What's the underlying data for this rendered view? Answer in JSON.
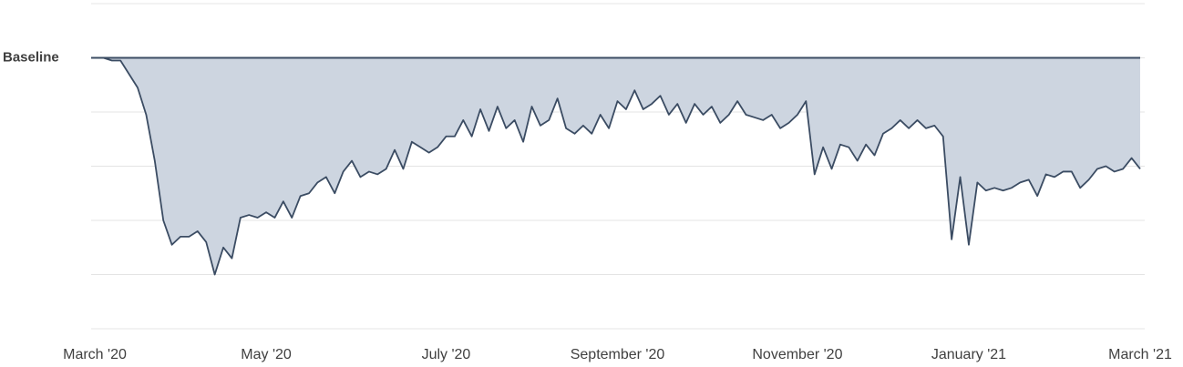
{
  "chart_data": {
    "type": "area",
    "categories": [
      "March '20",
      null,
      null,
      null,
      null,
      null,
      null,
      null,
      null,
      null,
      null,
      null,
      null,
      null,
      null,
      null,
      null,
      null,
      null,
      null,
      "May '20",
      null,
      null,
      null,
      null,
      null,
      null,
      null,
      null,
      null,
      null,
      null,
      null,
      null,
      null,
      null,
      null,
      null,
      null,
      null,
      null,
      "July '20",
      null,
      null,
      null,
      null,
      null,
      null,
      null,
      null,
      null,
      null,
      null,
      null,
      null,
      null,
      null,
      null,
      null,
      null,
      null,
      "September '20",
      null,
      null,
      null,
      null,
      null,
      null,
      null,
      null,
      null,
      null,
      null,
      null,
      null,
      null,
      null,
      null,
      null,
      null,
      null,
      null,
      "November '20",
      null,
      null,
      null,
      null,
      null,
      null,
      null,
      null,
      null,
      null,
      null,
      null,
      null,
      null,
      null,
      null,
      null,
      null,
      null,
      "January '21",
      null,
      null,
      null,
      null,
      null,
      null,
      null,
      null,
      null,
      null,
      null,
      null,
      null,
      null,
      null,
      null,
      null,
      null,
      null,
      "March '21"
    ],
    "values": [
      0,
      0,
      -1,
      -1,
      -6,
      -11,
      -21,
      -38,
      -60,
      -69,
      -66,
      -66,
      -64,
      -68,
      -80,
      -70,
      -74,
      -59,
      -58,
      -59,
      -57,
      -59,
      -53,
      -59,
      -51,
      -50,
      -46,
      -44,
      -50,
      -42,
      -38,
      -44,
      -42,
      -43,
      -41,
      -34,
      -41,
      -31,
      -33,
      -35,
      -33,
      -29,
      -29,
      -23,
      -29,
      -19,
      -27,
      -18,
      -26,
      -23,
      -31,
      -18,
      -25,
      -23,
      -15,
      -26,
      -28,
      -25,
      -28,
      -21,
      -26,
      -16,
      -19,
      -12,
      -19,
      -17,
      -14,
      -21,
      -17,
      -24,
      -17,
      -21,
      -18,
      -24,
      -21,
      -16,
      -21,
      -22,
      -23,
      -21,
      -26,
      -24,
      -21,
      -16,
      -43,
      -33,
      -41,
      -32,
      -33,
      -38,
      -32,
      -36,
      -28,
      -26,
      -23,
      -26,
      -23,
      -26,
      -25,
      -29,
      -67,
      -44,
      -69,
      -46,
      -49,
      -48,
      -49,
      -48,
      -46,
      -45,
      -51,
      -43,
      -44,
      -42,
      -42,
      -48,
      -45,
      -41,
      -40,
      -42,
      -41,
      -37,
      -41
    ],
    "line_color": "#3b4c63",
    "fill_color": "#cdd5e0",
    "ylim": [
      -100,
      20
    ],
    "yticks": [
      {
        "value": 0,
        "label": "Baseline"
      }
    ],
    "ygrid": [
      20,
      0,
      -20,
      -40,
      -60,
      -80,
      -100
    ]
  }
}
